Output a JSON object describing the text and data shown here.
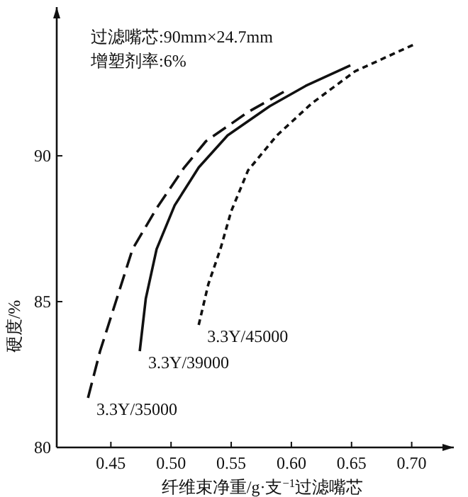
{
  "chart_data": {
    "type": "line",
    "xlabel": "纤维束净重/g·支$^{−1}$过滤嘴芯",
    "ylabel": "硬度/%",
    "annotations": [
      "过滤嘴芯:90mm×24.7mm",
      "增塑剂率:6%"
    ],
    "xlim": [
      0.405,
      0.735
    ],
    "ylim": [
      80,
      95.1
    ],
    "xticks": [
      0.45,
      {
        "value": 0.5,
        "label": "0.50"
      },
      0.55,
      {
        "value": 0.6,
        "label": "0.60"
      },
      0.65,
      {
        "value": 0.7,
        "label": "0.70"
      }
    ],
    "yticks": [
      80,
      85,
      90
    ],
    "grid": false,
    "marker": "none",
    "series": [
      {
        "name": "3.3Y/35000",
        "color": "#111111",
        "line_style": "dashed",
        "x": [
          0.431,
          0.441,
          0.468,
          0.488,
          0.511,
          0.529,
          0.564,
          0.594
        ],
        "values": [
          81.7,
          83.3,
          86.8,
          88.2,
          89.6,
          90.5,
          91.5,
          92.2
        ]
      },
      {
        "name": "3.3Y/39000",
        "color": "#111111",
        "line_style": "solid",
        "x": [
          0.474,
          0.479,
          0.488,
          0.503,
          0.523,
          0.547,
          0.582,
          0.612,
          0.649
        ],
        "values": [
          83.3,
          85.1,
          86.8,
          88.3,
          89.6,
          90.7,
          91.7,
          92.4,
          93.1
        ]
      },
      {
        "name": "3.3Y/45000",
        "color": "#111111",
        "line_style": "dotted",
        "x": [
          0.523,
          0.531,
          0.541,
          0.55,
          0.564,
          0.588,
          0.617,
          0.653,
          0.701
        ],
        "values": [
          84.2,
          85.6,
          86.8,
          88.1,
          89.5,
          90.7,
          91.8,
          92.9,
          93.8
        ]
      }
    ]
  }
}
